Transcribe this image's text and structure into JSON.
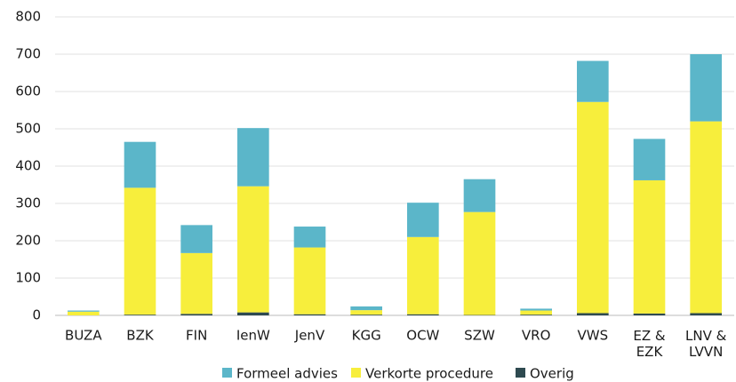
{
  "chart_data": {
    "type": "stacked_bar",
    "categories": [
      "BUZA",
      "BZK",
      "FIN",
      "IenW",
      "JenV",
      "KGG",
      "OCW",
      "SZW",
      "VRO",
      "VWS",
      "EZ & EZK",
      "LNV & LVVN"
    ],
    "series": [
      {
        "name": "Formeel advies",
        "color": "#5bb6c9",
        "values": [
          3,
          123,
          75,
          156,
          56,
          10,
          92,
          88,
          5,
          110,
          111,
          180
        ]
      },
      {
        "name": "Verkorte procedure",
        "color": "#f7ee3c",
        "values": [
          10,
          340,
          163,
          338,
          179,
          12,
          207,
          276,
          11,
          566,
          357,
          514
        ]
      },
      {
        "name": "Overig",
        "color": "#2e4a50",
        "values": [
          0,
          2,
          4,
          8,
          3,
          2,
          3,
          1,
          2,
          6,
          5,
          6
        ]
      }
    ],
    "ylim": [
      0,
      800
    ],
    "yticks": [
      0,
      100,
      200,
      300,
      400,
      500,
      600,
      700,
      800
    ],
    "grid": true
  }
}
